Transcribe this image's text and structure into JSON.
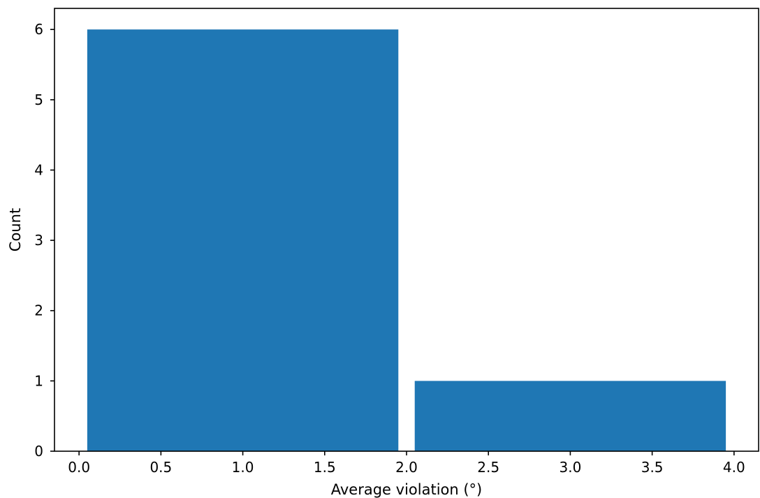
{
  "chart_data": {
    "type": "bar",
    "title": "",
    "xlabel": "Average violation (°)",
    "ylabel": "Count",
    "xlim": [
      -0.15,
      4.15
    ],
    "ylim": [
      0,
      6.3
    ],
    "x_ticks": [
      0.0,
      0.5,
      1.0,
      1.5,
      2.0,
      2.5,
      3.0,
      3.5,
      4.0
    ],
    "x_tick_labels": [
      "0.0",
      "0.5",
      "1.0",
      "1.5",
      "2.0",
      "2.5",
      "3.0",
      "3.5",
      "4.0"
    ],
    "y_ticks": [
      0,
      1,
      2,
      3,
      4,
      5,
      6
    ],
    "y_tick_labels": [
      "0",
      "1",
      "2",
      "3",
      "4",
      "5",
      "6"
    ],
    "bins": [
      {
        "x_start": 0.05,
        "x_end": 1.95,
        "value": 6
      },
      {
        "x_start": 2.05,
        "x_end": 3.95,
        "value": 1
      }
    ],
    "grid": false,
    "legend": "none",
    "bar_color": "#1f77b4"
  }
}
